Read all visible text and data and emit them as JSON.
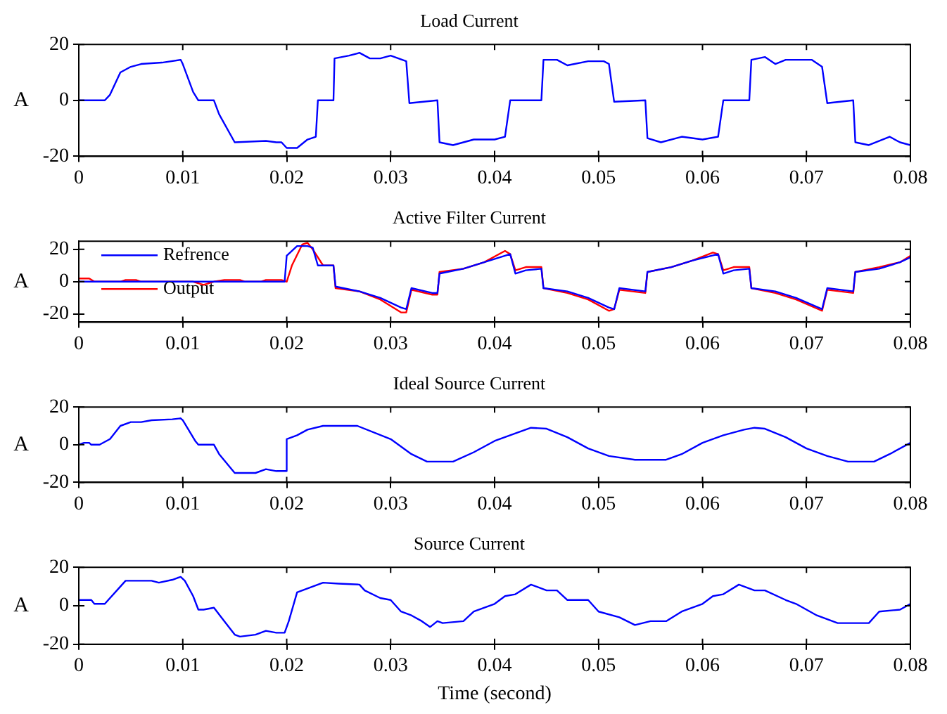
{
  "chart_data": [
    {
      "type": "line",
      "title": "Load Current",
      "ylabel": "A",
      "xlim": [
        0,
        0.08
      ],
      "xticks": [
        0,
        0.01,
        0.02,
        0.03,
        0.04,
        0.05,
        0.06,
        0.07,
        0.08
      ],
      "ylim": [
        -20,
        20
      ],
      "yticks": [
        -20,
        0,
        20
      ],
      "grid": false,
      "legend": false,
      "marker": "none",
      "series": [
        {
          "color": "#0000ff",
          "x": [
            0,
            0.0025,
            0.003,
            0.004,
            0.005,
            0.006,
            0.008,
            0.0098,
            0.01,
            0.011,
            0.0115,
            0.013,
            0.0135,
            0.015,
            0.018,
            0.019,
            0.0195,
            0.02,
            0.021,
            0.022,
            0.0228,
            0.023,
            0.0245,
            0.0246,
            0.026,
            0.027,
            0.028,
            0.029,
            0.03,
            0.0315,
            0.0318,
            0.0345,
            0.0347,
            0.036,
            0.037,
            0.038,
            0.04,
            0.041,
            0.0415,
            0.0445,
            0.0447,
            0.046,
            0.047,
            0.049,
            0.0505,
            0.051,
            0.0515,
            0.0545,
            0.0547,
            0.056,
            0.058,
            0.06,
            0.0615,
            0.062,
            0.0645,
            0.0647,
            0.066,
            0.067,
            0.068,
            0.0705,
            0.0715,
            0.072,
            0.0745,
            0.0747,
            0.076,
            0.078,
            0.079,
            0.08
          ],
          "values": [
            0,
            0,
            2,
            10,
            12,
            13,
            13.5,
            14.5,
            13,
            3,
            0,
            0,
            -5,
            -15,
            -14.5,
            -15,
            -15,
            -17,
            -17,
            -14,
            -13,
            0,
            0,
            15,
            16,
            17,
            15,
            15,
            16,
            14,
            -1,
            0,
            -15,
            -16,
            -15,
            -14,
            -14,
            -13,
            0,
            0,
            14.5,
            14.5,
            12.5,
            14,
            14,
            13,
            -0.5,
            0,
            -13.5,
            -15,
            -13,
            -14,
            -13,
            0,
            0,
            14.5,
            15.5,
            13,
            14.5,
            14.5,
            12,
            -1,
            0,
            -15,
            -16,
            -13,
            -15,
            -16
          ]
        }
      ]
    },
    {
      "type": "line",
      "title": "Active Filter Current",
      "ylabel": "A",
      "xlim": [
        0,
        0.08
      ],
      "xticks": [
        0,
        0.01,
        0.02,
        0.03,
        0.04,
        0.05,
        0.06,
        0.07,
        0.08
      ],
      "ylim": [
        -25,
        25
      ],
      "yticks": [
        -20,
        0,
        20
      ],
      "grid": false,
      "legend": "top left",
      "marker": "none",
      "series": [
        {
          "name": "Refrence",
          "color": "#0000ff",
          "x": [
            0,
            0.0198,
            0.02,
            0.021,
            0.022,
            0.0225,
            0.023,
            0.0245,
            0.0247,
            0.027,
            0.029,
            0.031,
            0.0315,
            0.032,
            0.034,
            0.0345,
            0.0347,
            0.037,
            0.039,
            0.041,
            0.0415,
            0.042,
            0.043,
            0.0445,
            0.0447,
            0.047,
            0.049,
            0.051,
            0.0515,
            0.052,
            0.0545,
            0.0547,
            0.057,
            0.059,
            0.0615,
            0.062,
            0.063,
            0.0645,
            0.0647,
            0.067,
            0.069,
            0.0715,
            0.072,
            0.0745,
            0.0747,
            0.077,
            0.079,
            0.08
          ],
          "values": [
            0,
            0,
            16,
            22,
            22,
            21,
            10,
            10,
            -3,
            -6,
            -10,
            -16,
            -17,
            -4,
            -7,
            -7,
            5,
            8,
            12,
            16,
            17,
            5,
            7,
            8,
            -4,
            -6,
            -10,
            -16,
            -17,
            -4,
            -6,
            6,
            9,
            13,
            17,
            5,
            7,
            8,
            -4,
            -6,
            -10,
            -17,
            -4,
            -6,
            6,
            8,
            12,
            15
          ]
        },
        {
          "name": "Output",
          "color": "#ff0000",
          "x": [
            0,
            0.001,
            0.0015,
            0.004,
            0.0045,
            0.0055,
            0.006,
            0.011,
            0.012,
            0.013,
            0.014,
            0.0155,
            0.016,
            0.0175,
            0.018,
            0.0195,
            0.02,
            0.0205,
            0.0215,
            0.022,
            0.0225,
            0.0235,
            0.0245,
            0.0247,
            0.027,
            0.029,
            0.031,
            0.0315,
            0.032,
            0.034,
            0.0345,
            0.0347,
            0.037,
            0.039,
            0.041,
            0.0415,
            0.042,
            0.043,
            0.0445,
            0.0447,
            0.047,
            0.049,
            0.051,
            0.0515,
            0.052,
            0.0545,
            0.0547,
            0.057,
            0.059,
            0.061,
            0.0615,
            0.062,
            0.063,
            0.0645,
            0.0647,
            0.067,
            0.069,
            0.0715,
            0.072,
            0.0745,
            0.0747,
            0.077,
            0.079,
            0.08
          ],
          "values": [
            2,
            2,
            0,
            0,
            1,
            1,
            0,
            0,
            -2,
            0,
            1,
            1,
            0,
            0,
            1,
            1,
            0,
            10,
            23,
            24,
            20,
            10,
            10,
            -4,
            -6,
            -11,
            -19,
            -19,
            -5,
            -8,
            -8,
            6,
            8,
            12,
            19,
            17,
            7,
            9,
            9,
            -4,
            -7,
            -11,
            -18,
            -17,
            -5,
            -7,
            6,
            9,
            13,
            18,
            17,
            7,
            9,
            9,
            -4,
            -7,
            -11,
            -18,
            -5,
            -7,
            6,
            9,
            12,
            16
          ]
        }
      ]
    },
    {
      "type": "line",
      "title": "Ideal Source Current",
      "ylabel": "A",
      "xlim": [
        0,
        0.08
      ],
      "xticks": [
        0,
        0.01,
        0.02,
        0.03,
        0.04,
        0.05,
        0.06,
        0.07,
        0.08
      ],
      "ylim": [
        -20,
        20
      ],
      "yticks": [
        -20,
        0,
        20
      ],
      "grid": false,
      "legend": false,
      "marker": "none",
      "series": [
        {
          "color": "#0000ff",
          "x": [
            0,
            0.0005,
            0.001,
            0.0012,
            0.002,
            0.003,
            0.004,
            0.005,
            0.006,
            0.007,
            0.009,
            0.0098,
            0.01,
            0.0112,
            0.0115,
            0.013,
            0.0135,
            0.015,
            0.017,
            0.018,
            0.019,
            0.0199,
            0.02,
            0.021,
            0.022,
            0.0235,
            0.0268,
            0.03,
            0.032,
            0.0335,
            0.036,
            0.038,
            0.04,
            0.042,
            0.0435,
            0.045,
            0.047,
            0.049,
            0.051,
            0.0535,
            0.0565,
            0.058,
            0.06,
            0.062,
            0.064,
            0.065,
            0.066,
            0.068,
            0.07,
            0.072,
            0.074,
            0.0765,
            0.078,
            0.08
          ],
          "values": [
            0,
            1,
            1,
            0,
            0,
            3,
            10,
            12,
            12,
            13,
            13.5,
            14,
            13,
            2,
            0,
            0,
            -5,
            -15,
            -15,
            -13,
            -14,
            -14,
            3,
            5,
            8,
            10,
            10,
            3,
            -5,
            -9,
            -9,
            -4,
            2,
            6,
            9,
            8.5,
            4,
            -2,
            -6,
            -8,
            -8,
            -5,
            1,
            5,
            8,
            9,
            8.5,
            4,
            -2,
            -6,
            -9,
            -9,
            -5,
            1
          ]
        }
      ]
    },
    {
      "type": "line",
      "title": "Source Current",
      "ylabel": "A",
      "xlabel": "Time (second)",
      "xlim": [
        0,
        0.08
      ],
      "xticks": [
        0,
        0.01,
        0.02,
        0.03,
        0.04,
        0.05,
        0.06,
        0.07,
        0.08
      ],
      "ylim": [
        -20,
        20
      ],
      "yticks": [
        -20,
        0,
        20
      ],
      "grid": false,
      "legend": false,
      "marker": "none",
      "series": [
        {
          "color": "#0000ff",
          "x": [
            0,
            0.0012,
            0.0015,
            0.0025,
            0.004,
            0.0045,
            0.007,
            0.0077,
            0.009,
            0.0095,
            0.0098,
            0.0102,
            0.011,
            0.0115,
            0.012,
            0.013,
            0.014,
            0.015,
            0.0155,
            0.017,
            0.018,
            0.019,
            0.0198,
            0.0202,
            0.021,
            0.022,
            0.0235,
            0.025,
            0.027,
            0.0275,
            0.029,
            0.03,
            0.031,
            0.032,
            0.033,
            0.0338,
            0.0345,
            0.035,
            0.037,
            0.038,
            0.04,
            0.041,
            0.042,
            0.0435,
            0.045,
            0.046,
            0.047,
            0.049,
            0.05,
            0.052,
            0.0535,
            0.055,
            0.0565,
            0.058,
            0.06,
            0.061,
            0.062,
            0.0635,
            0.065,
            0.066,
            0.068,
            0.069,
            0.071,
            0.073,
            0.0745,
            0.076,
            0.077,
            0.079,
            0.08
          ],
          "values": [
            3,
            3,
            1,
            1,
            10,
            13,
            13,
            12,
            13.5,
            14.5,
            15,
            13,
            5,
            -2,
            -2,
            -1,
            -8,
            -15,
            -16,
            -15,
            -13,
            -14,
            -14,
            -8,
            7,
            9,
            12,
            11.5,
            11,
            8,
            4,
            3,
            -3,
            -5,
            -8,
            -11,
            -8,
            -9,
            -8,
            -3,
            1,
            5,
            6,
            11,
            8,
            8,
            3,
            3,
            -3,
            -6,
            -10,
            -8,
            -8,
            -3,
            1,
            5,
            6,
            11,
            8,
            8,
            3,
            1,
            -5,
            -9,
            -9,
            -9,
            -3,
            -2,
            1
          ]
        }
      ]
    }
  ]
}
